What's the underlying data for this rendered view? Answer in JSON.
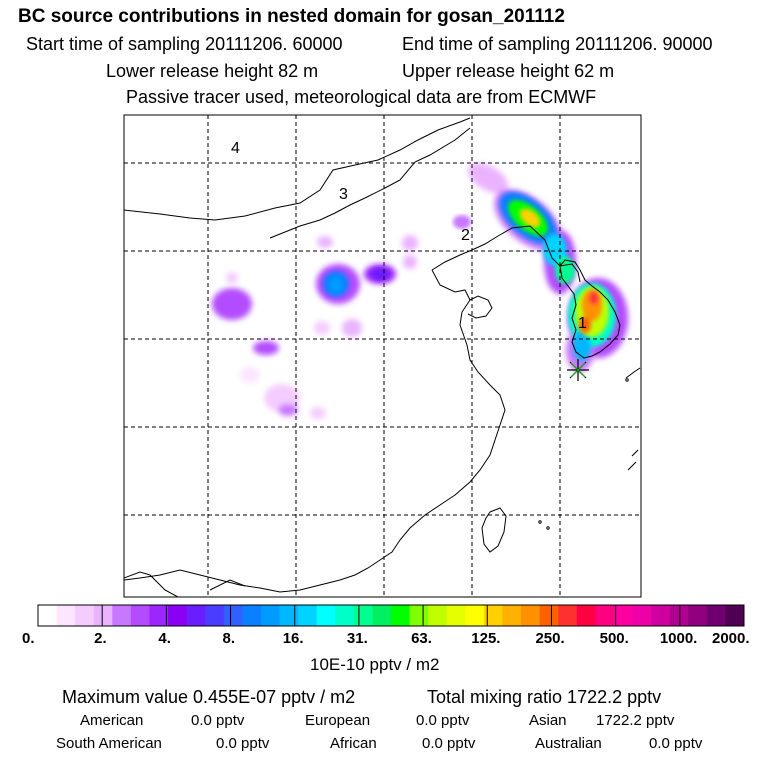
{
  "header": {
    "title": "BC  source contributions in nested domain for gosan_201112",
    "start_label": "Start time of sampling 20111206. 60000",
    "end_label": "End time of sampling 20111206. 90000",
    "lower_release": "Lower release height   82 m",
    "upper_release": "Upper release height   62 m",
    "tracer_note": "Passive tracer used, meteorological data are from ECMWF"
  },
  "map": {
    "region_labels": [
      "4",
      "3",
      "2",
      "1"
    ],
    "station_marker": "receptor-star"
  },
  "colorbar": {
    "colors": [
      "#ffffff",
      "#fbe5ff",
      "#f4ccff",
      "#eab3ff",
      "#c877ff",
      "#b34cff",
      "#9d26ff",
      "#8a00f5",
      "#6a1eff",
      "#4a3dff",
      "#3060ff",
      "#0a7fff",
      "#009bff",
      "#00b8ff",
      "#00d3ff",
      "#00ffff",
      "#00ffc8",
      "#00ff90",
      "#00f060",
      "#00ff00",
      "#80ff00",
      "#c0ff00",
      "#e6ff00",
      "#ffff00",
      "#ffd000",
      "#ffb000",
      "#ff9000",
      "#ff6000",
      "#ff3030",
      "#ff0040",
      "#ff0080",
      "#ff00a0",
      "#ee00a8",
      "#d000a0",
      "#b00090",
      "#900080",
      "#700070",
      "#500050"
    ],
    "tick_labels": [
      "0.",
      "2.",
      "4.",
      "8.",
      "16.",
      "31.",
      "63.",
      "125.",
      "250.",
      "500.",
      "1000.",
      "2000."
    ],
    "units": "10E-10 pptv / m2"
  },
  "stats": {
    "max_value": "Maximum value  0.455E-07 pptv / m2",
    "total_mixing": "Total mixing ratio     1722.2 pptv",
    "american_label": "American",
    "american_value": "0.0 pptv",
    "european_label": "European",
    "european_value": "0.0 pptv",
    "asian_label": "Asian",
    "asian_value": "1722.2 pptv",
    "south_american_label": "South American",
    "south_american_value": "0.0 pptv",
    "african_label": "African",
    "african_value": "0.0 pptv",
    "australian_label": "Australian",
    "australian_value": "0.0 pptv"
  }
}
